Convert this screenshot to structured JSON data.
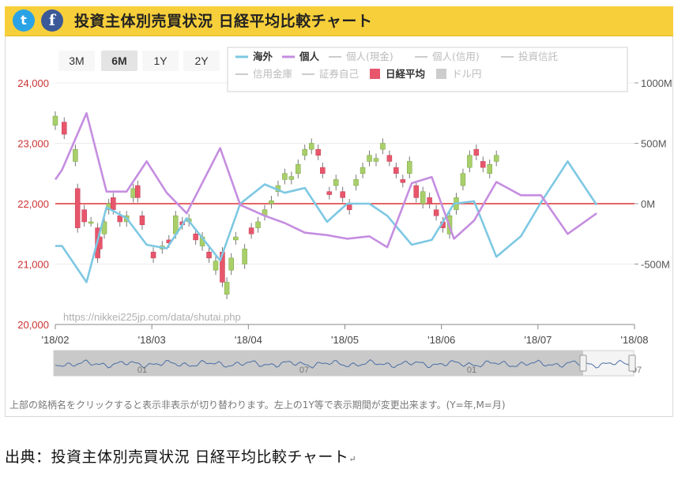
{
  "header": {
    "title": "投資主体別売買状況 日経平均比較チャート",
    "twitter_label": "t",
    "facebook_label": "f"
  },
  "range_buttons": [
    {
      "label": "3M",
      "active": false
    },
    {
      "label": "6M",
      "active": true
    },
    {
      "label": "1Y",
      "active": false
    },
    {
      "label": "2Y",
      "active": false
    }
  ],
  "legend": [
    {
      "label": "海外",
      "color": "#7ec8e3",
      "active": true,
      "kind": "line"
    },
    {
      "label": "個人",
      "color": "#c58ee0",
      "active": true,
      "kind": "line"
    },
    {
      "label": "個人(現金)",
      "color": "#cccccc",
      "active": false,
      "kind": "line"
    },
    {
      "label": "個人(信用)",
      "color": "#cccccc",
      "active": false,
      "kind": "line"
    },
    {
      "label": "投資信託",
      "color": "#cccccc",
      "active": false,
      "kind": "line"
    },
    {
      "label": "信用金庫",
      "color": "#cccccc",
      "active": false,
      "kind": "line"
    },
    {
      "label": "証券自己",
      "color": "#cccccc",
      "active": false,
      "kind": "line"
    },
    {
      "label": "日経平均",
      "color": "#e8566c",
      "active": true,
      "kind": "box"
    },
    {
      "label": "ドル円",
      "color": "#cccccc",
      "active": false,
      "kind": "box"
    }
  ],
  "watermark": "https://nikkei225jp.com/data/shutai.php",
  "footer_note": "上部の銘柄名をクリックすると表示非表示が切り替わります。左上の1Y等で表示期間が変更出来ます。(Y=年,M=月)",
  "caption": "出典：投資主体別売買状況 日経平均比較チャート",
  "caption_mark": "↵",
  "navigator_labels": [
    "01",
    "07",
    "01",
    "07"
  ],
  "colors": {
    "accent": "#f7cf3a",
    "up_candle": "#a9cf6a",
    "down_candle": "#e8566c",
    "zero_line": "#dd3333",
    "left_axis_text": "#cc3333",
    "right_axis_text": "#555555"
  },
  "chart_data": {
    "type": "line",
    "x_ticks": [
      "'18/02",
      "'18/03",
      "'18/04",
      "'18/05",
      "'18/06",
      "'18/07",
      "'18/08"
    ],
    "left_axis": {
      "label": "",
      "ticks": [
        "24,000",
        "23,000",
        "22,000",
        "21,000",
        "20,000"
      ],
      "ylim": [
        20000,
        24000
      ]
    },
    "right_axis": {
      "label": "",
      "ticks": [
        "1000M",
        "500M",
        "0M",
        "-500M"
      ],
      "ylim": [
        -1000,
        1000
      ]
    },
    "x_range": [
      0,
      26
    ],
    "series": [
      {
        "name": "海外",
        "x": [
          0,
          0.3,
          1.4,
          2.3,
          3.2,
          4.1,
          5.0,
          5.9,
          7.4,
          8.3,
          9.4,
          10.3,
          11.2,
          12.2,
          13.1,
          14.1,
          14.9,
          16.0,
          16.9,
          17.9,
          18.8,
          19.8,
          20.9,
          21.8,
          23.0,
          24.3
        ],
        "values": [
          -350,
          -350,
          -650,
          -30,
          -120,
          -340,
          -370,
          -120,
          -470,
          0,
          160,
          90,
          130,
          -150,
          0,
          0,
          -100,
          -340,
          -300,
          0,
          20,
          -440,
          -270,
          10,
          350,
          -10
        ]
      },
      {
        "name": "個人",
        "x": [
          0,
          0.3,
          1.4,
          2.3,
          3.2,
          4.1,
          5.0,
          5.9,
          7.4,
          8.3,
          9.4,
          10.3,
          11.2,
          12.2,
          13.1,
          14.1,
          14.9,
          16.0,
          16.9,
          17.9,
          18.8,
          19.8,
          20.9,
          21.8,
          23.0,
          24.3
        ],
        "values": [
          200,
          280,
          750,
          100,
          100,
          350,
          90,
          -80,
          460,
          -10,
          -100,
          -160,
          -240,
          -260,
          -290,
          -270,
          -360,
          170,
          220,
          -290,
          -140,
          180,
          70,
          70,
          -250,
          -80
        ]
      }
    ],
    "candles": [
      [
        0.0,
        23300,
        23450
      ],
      [
        0.4,
        23350,
        23150
      ],
      [
        0.9,
        22700,
        22900
      ],
      [
        1.0,
        22250,
        21600
      ],
      [
        1.3,
        21900,
        21700
      ],
      [
        1.6,
        21700,
        21700
      ],
      [
        1.9,
        21600,
        21100
      ],
      [
        2.0,
        21450,
        21250
      ],
      [
        2.2,
        21500,
        21700
      ],
      [
        2.4,
        21900,
        22000
      ],
      [
        2.6,
        22100,
        21900
      ],
      [
        2.9,
        21800,
        21700
      ],
      [
        3.2,
        21700,
        21800
      ],
      [
        3.5,
        22100,
        22250
      ],
      [
        3.7,
        22300,
        22100
      ],
      [
        3.9,
        21800,
        21650
      ],
      [
        4.4,
        21200,
        21100
      ],
      [
        4.8,
        21250,
        21300
      ],
      [
        5.1,
        21400,
        21350
      ],
      [
        5.4,
        21500,
        21800
      ],
      [
        5.7,
        21700,
        21650
      ],
      [
        6.0,
        21700,
        21750
      ],
      [
        6.3,
        21500,
        21400
      ],
      [
        6.6,
        21300,
        21450
      ],
      [
        6.9,
        21200,
        21100
      ],
      [
        7.2,
        20900,
        21050
      ],
      [
        7.5,
        21200,
        20700
      ],
      [
        7.7,
        20500,
        20700
      ],
      [
        7.9,
        20900,
        21100
      ],
      [
        8.1,
        21400,
        21450
      ],
      [
        8.5,
        21000,
        21250
      ],
      [
        8.8,
        21600,
        21500
      ],
      [
        9.1,
        21600,
        21700
      ],
      [
        9.4,
        21800,
        21900
      ],
      [
        9.7,
        22000,
        22050
      ],
      [
        10.0,
        22200,
        22300
      ],
      [
        10.3,
        22400,
        22500
      ],
      [
        10.6,
        22400,
        22450
      ],
      [
        10.9,
        22500,
        22650
      ],
      [
        11.2,
        22800,
        22900
      ],
      [
        11.5,
        22900,
        23000
      ],
      [
        11.8,
        22900,
        22800
      ],
      [
        12.0,
        22600,
        22500
      ],
      [
        12.3,
        22200,
        22150
      ],
      [
        12.6,
        22300,
        22400
      ],
      [
        12.9,
        22200,
        22100
      ],
      [
        13.2,
        22000,
        21900
      ],
      [
        13.5,
        22300,
        22400
      ],
      [
        13.8,
        22500,
        22600
      ],
      [
        14.1,
        22700,
        22800
      ],
      [
        14.4,
        22700,
        22750
      ],
      [
        14.7,
        22900,
        23000
      ],
      [
        15.0,
        22800,
        22700
      ],
      [
        15.3,
        22600,
        22500
      ],
      [
        15.6,
        22400,
        22350
      ],
      [
        15.9,
        22500,
        22700
      ],
      [
        16.2,
        22300,
        22100
      ],
      [
        16.5,
        22000,
        22200
      ],
      [
        16.8,
        22100,
        22000
      ],
      [
        17.1,
        21900,
        21800
      ],
      [
        17.4,
        21700,
        21600
      ],
      [
        17.7,
        21500,
        21800
      ],
      [
        18.0,
        21900,
        22100
      ],
      [
        18.3,
        22300,
        22500
      ],
      [
        18.6,
        22600,
        22800
      ],
      [
        18.9,
        22900,
        22800
      ],
      [
        19.2,
        22700,
        22600
      ],
      [
        19.5,
        22500,
        22650
      ],
      [
        19.8,
        22700,
        22800
      ]
    ]
  }
}
